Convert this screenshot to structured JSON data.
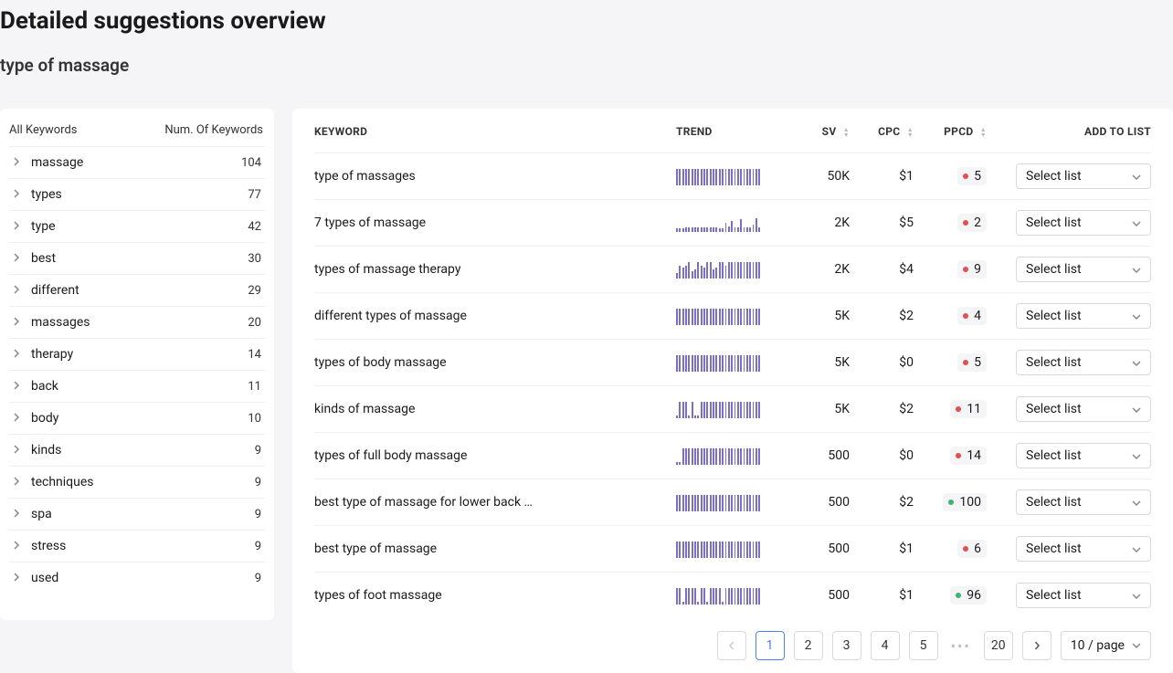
{
  "header": {
    "title": "Detailed suggestions overview",
    "subtitle": "type of massage"
  },
  "sidebar": {
    "title_left": "All Keywords",
    "title_right": "Num. Of Keywords",
    "items": [
      {
        "label": "massage",
        "count": 104
      },
      {
        "label": "types",
        "count": 77
      },
      {
        "label": "type",
        "count": 42
      },
      {
        "label": "best",
        "count": 30
      },
      {
        "label": "different",
        "count": 29
      },
      {
        "label": "massages",
        "count": 20
      },
      {
        "label": "therapy",
        "count": 14
      },
      {
        "label": "back",
        "count": 11
      },
      {
        "label": "body",
        "count": 10
      },
      {
        "label": "kinds",
        "count": 9
      },
      {
        "label": "techniques",
        "count": 9
      },
      {
        "label": "spa",
        "count": 9
      },
      {
        "label": "stress",
        "count": 9
      },
      {
        "label": "used",
        "count": 9
      }
    ]
  },
  "table": {
    "columns": {
      "keyword": "KEYWORD",
      "trend": "TREND",
      "sv": "SV",
      "cpc": "CPC",
      "ppcd": "PPCD",
      "add": "ADD TO LIST"
    },
    "select_list_label": "Select list",
    "trend_color": "#7b6fc9",
    "rows": [
      {
        "keyword": "type of massages",
        "sv": "50K",
        "cpc": "$1",
        "ppcd": 5,
        "ppcd_status": "red",
        "trend": [
          18,
          18,
          18,
          18,
          18,
          18,
          18,
          18,
          18,
          18,
          18,
          18,
          18,
          18,
          18,
          18,
          18,
          18,
          18,
          18,
          18,
          18,
          18,
          18,
          18,
          18,
          18,
          18
        ]
      },
      {
        "keyword": "7 types of massage",
        "sv": "2K",
        "cpc": "$5",
        "ppcd": 2,
        "ppcd_status": "red",
        "trend": [
          4,
          4,
          4,
          5,
          5,
          5,
          5,
          5,
          5,
          5,
          5,
          5,
          5,
          5,
          4,
          4,
          10,
          6,
          12,
          5,
          5,
          14,
          5,
          5,
          5,
          8,
          15,
          5
        ]
      },
      {
        "keyword": "types of massage therapy",
        "sv": "2K",
        "cpc": "$4",
        "ppcd": 9,
        "ppcd_status": "red",
        "trend": [
          6,
          14,
          12,
          14,
          18,
          8,
          10,
          18,
          14,
          12,
          18,
          18,
          10,
          12,
          18,
          18,
          14,
          18,
          18,
          18,
          18,
          18,
          18,
          18,
          18,
          18,
          18,
          18
        ]
      },
      {
        "keyword": "different types of massage",
        "sv": "5K",
        "cpc": "$2",
        "ppcd": 4,
        "ppcd_status": "red",
        "trend": [
          18,
          18,
          18,
          18,
          18,
          18,
          18,
          18,
          18,
          18,
          18,
          18,
          18,
          18,
          18,
          18,
          18,
          18,
          18,
          18,
          18,
          18,
          18,
          18,
          18,
          18,
          18,
          18
        ]
      },
      {
        "keyword": "types of body massage",
        "sv": "5K",
        "cpc": "$0",
        "ppcd": 5,
        "ppcd_status": "red",
        "trend": [
          18,
          18,
          18,
          18,
          18,
          18,
          18,
          18,
          18,
          18,
          18,
          18,
          18,
          18,
          18,
          18,
          18,
          18,
          18,
          18,
          18,
          18,
          18,
          18,
          18,
          18,
          18,
          18
        ]
      },
      {
        "keyword": "kinds of massage",
        "sv": "5K",
        "cpc": "$2",
        "ppcd": 11,
        "ppcd_status": "red",
        "trend": [
          3,
          18,
          18,
          18,
          3,
          18,
          3,
          3,
          18,
          18,
          18,
          18,
          18,
          18,
          18,
          18,
          18,
          18,
          18,
          18,
          18,
          18,
          18,
          18,
          18,
          18,
          18,
          18
        ]
      },
      {
        "keyword": "types of full body massage",
        "sv": "500",
        "cpc": "$0",
        "ppcd": 14,
        "ppcd_status": "red",
        "trend": [
          3,
          3,
          18,
          18,
          18,
          18,
          18,
          18,
          18,
          18,
          18,
          18,
          18,
          18,
          18,
          18,
          18,
          18,
          18,
          18,
          18,
          18,
          18,
          18,
          18,
          18,
          18,
          18
        ]
      },
      {
        "keyword": "best type of massage for lower back …",
        "sv": "500",
        "cpc": "$2",
        "ppcd": 100,
        "ppcd_status": "green",
        "trend": [
          18,
          18,
          18,
          18,
          18,
          18,
          18,
          18,
          18,
          18,
          18,
          18,
          18,
          18,
          18,
          18,
          18,
          18,
          18,
          18,
          18,
          18,
          18,
          18,
          18,
          18,
          18,
          18
        ]
      },
      {
        "keyword": "best type of massage",
        "sv": "500",
        "cpc": "$1",
        "ppcd": 6,
        "ppcd_status": "red",
        "trend": [
          18,
          18,
          18,
          18,
          18,
          18,
          18,
          18,
          18,
          18,
          18,
          18,
          18,
          18,
          18,
          18,
          18,
          18,
          18,
          18,
          18,
          18,
          18,
          18,
          18,
          18,
          18,
          18
        ]
      },
      {
        "keyword": "types of foot massage",
        "sv": "500",
        "cpc": "$1",
        "ppcd": 96,
        "ppcd_status": "green",
        "trend": [
          18,
          18,
          3,
          18,
          18,
          18,
          18,
          3,
          18,
          18,
          3,
          18,
          18,
          18,
          18,
          3,
          18,
          18,
          18,
          18,
          18,
          18,
          18,
          18,
          18,
          18,
          18,
          18
        ]
      }
    ]
  },
  "pagination": {
    "pages": [
      "1",
      "2",
      "3",
      "4",
      "5"
    ],
    "last": "20",
    "active": "1",
    "page_size_label": "10 / page"
  }
}
